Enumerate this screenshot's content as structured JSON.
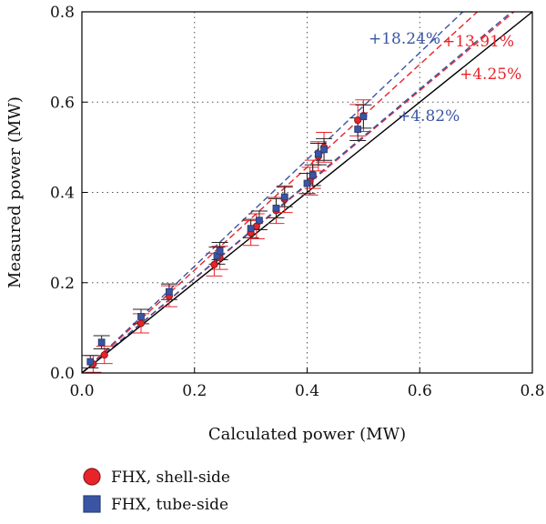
{
  "chart_data": {
    "type": "scatter",
    "title": "",
    "xlabel": "Calculated power (MW)",
    "ylabel": "Measured power (MW)",
    "xlim": [
      0,
      0.8
    ],
    "ylim": [
      0,
      0.8
    ],
    "x_ticks": [
      "0.0",
      "0.2",
      "0.4",
      "0.6",
      "0.8"
    ],
    "y_ticks": [
      "0.0",
      "0.2",
      "0.4",
      "0.6",
      "0.8"
    ],
    "grid": true,
    "legend_position": "bottom-left",
    "colors": {
      "shell": "#e8242b",
      "tube": "#3a55a4",
      "shell_dark": "#8b1a1a",
      "tube_dark": "#2b3f7a",
      "ideal": "#000000"
    },
    "series": [
      {
        "name": "FHX, shell-side",
        "marker": "circle",
        "points": [
          [
            0.02,
            0.02
          ],
          [
            0.04,
            0.04
          ],
          [
            0.105,
            0.11
          ],
          [
            0.155,
            0.17
          ],
          [
            0.235,
            0.24
          ],
          [
            0.245,
            0.255
          ],
          [
            0.3,
            0.31
          ],
          [
            0.31,
            0.325
          ],
          [
            0.345,
            0.36
          ],
          [
            0.36,
            0.385
          ],
          [
            0.405,
            0.425
          ],
          [
            0.41,
            0.44
          ],
          [
            0.42,
            0.48
          ],
          [
            0.43,
            0.5
          ],
          [
            0.49,
            0.56
          ],
          [
            0.5,
            0.57
          ]
        ],
        "error": 0.03
      },
      {
        "name": "FHX, tube-side",
        "marker": "square",
        "points": [
          [
            0.015,
            0.025
          ],
          [
            0.035,
            0.068
          ],
          [
            0.105,
            0.125
          ],
          [
            0.155,
            0.18
          ],
          [
            0.24,
            0.26
          ],
          [
            0.245,
            0.27
          ],
          [
            0.3,
            0.32
          ],
          [
            0.315,
            0.338
          ],
          [
            0.345,
            0.365
          ],
          [
            0.36,
            0.39
          ],
          [
            0.4,
            0.42
          ],
          [
            0.41,
            0.438
          ],
          [
            0.42,
            0.485
          ],
          [
            0.43,
            0.495
          ],
          [
            0.49,
            0.54
          ],
          [
            0.5,
            0.568
          ]
        ],
        "error": 0.022
      }
    ],
    "trend_lines": [
      {
        "label": "+18.24%",
        "slope": 1.1824,
        "color": "#3a55a4"
      },
      {
        "label": "+13.91%",
        "slope": 1.1391,
        "color": "#e8242b"
      },
      {
        "label": "+4.25%",
        "slope": 1.0425,
        "color": "#e8242b"
      },
      {
        "label": "+4.82%",
        "slope": 1.0482,
        "color": "#3a55a4"
      }
    ],
    "ideal_line_slope": 1.0
  }
}
